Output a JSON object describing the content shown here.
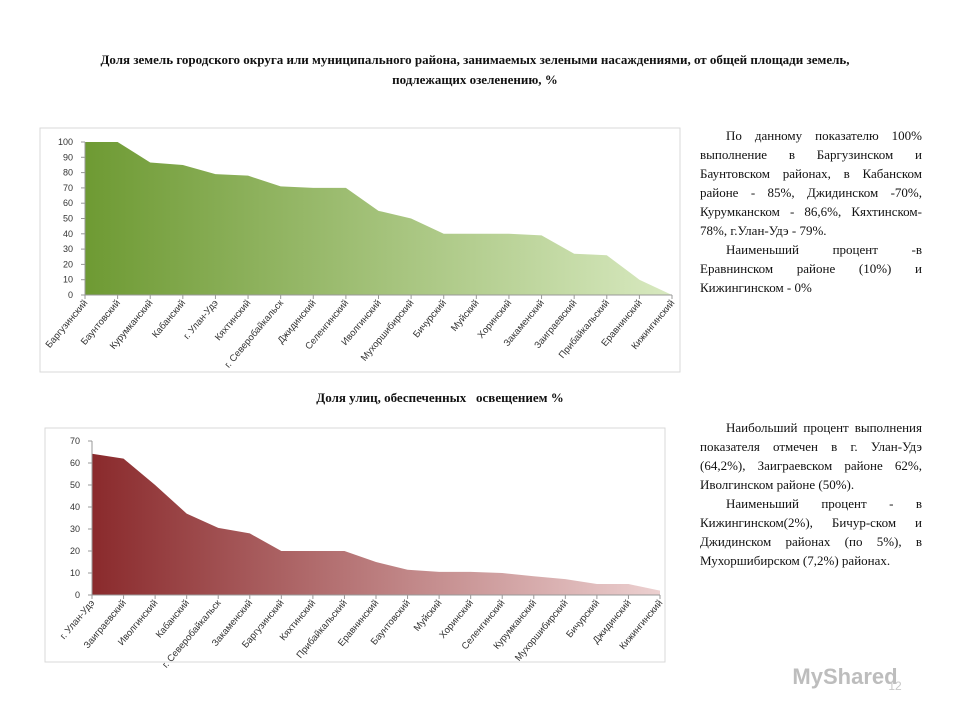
{
  "chart_data": [
    {
      "type": "area",
      "title": "Доля земель городского округа или муниципального района, занимаемых зелеными насаждениями, от общей площади земель, подлежащих озеленению, %",
      "categories": [
        "Баргузинский",
        "Баунтовский",
        "Курумканский",
        "Кабанский",
        "г. Улан-Удэ",
        "Кяхтинский",
        "г. Северобайкальск",
        "Джидинский",
        "Селенгинский",
        "Иволгинский",
        "Мухоршибирский",
        "Бичурский",
        "Муйский",
        "Хоринский",
        "Закаменский",
        "Заиграевский",
        "Прибайкальский",
        "Еравнинский",
        "Кижингинский"
      ],
      "values": [
        100,
        100,
        86.6,
        85,
        79,
        78,
        71,
        70,
        70,
        55,
        50,
        40,
        40,
        40,
        39,
        27,
        26,
        10,
        0
      ],
      "gradient": [
        "#6e9a33",
        "#d8e9c0"
      ],
      "ylim": [
        0,
        100
      ],
      "yticks": [
        0,
        10,
        20,
        30,
        40,
        50,
        60,
        70,
        80,
        90,
        100
      ]
    },
    {
      "type": "area",
      "title": "Доля улиц, обеспеченных   освещением %",
      "categories": [
        "г. Улан-Удэ",
        "Заиграевский",
        "Иволгинский",
        "Кабанский",
        "г. Северобайкальск",
        "Закаменский",
        "Баргузинский",
        "Кяхтинский",
        "Прибайкальский",
        "Еравнинский",
        "Баунтовский",
        "Муйский",
        "Хоринский",
        "Селенгинский",
        "Курумканский",
        "Мухоршибирский",
        "Бичурский",
        "Джидинский",
        "Кижингинский"
      ],
      "values": [
        64.2,
        62,
        50,
        37,
        30.5,
        28,
        20,
        20,
        20,
        15,
        11.5,
        10.5,
        10.5,
        10,
        8.5,
        7.2,
        5,
        5,
        2
      ],
      "gradient": [
        "#8a2a2c",
        "#ecd0d0"
      ],
      "ylim": [
        0,
        70
      ],
      "yticks": [
        0,
        10,
        20,
        30,
        40,
        50,
        60,
        70
      ]
    }
  ],
  "notes": [
    [
      "По данному показателю 100% выполнение в Баргузинском и Баунтовском районах, в Кабанском районе - 85%, Джидинском -70%, Курумканском - 86,6%, Кяхтинском- 78%, г.Улан-Удэ - 79%.",
      "Наименьший процент -в Еравнинском районе (10%) и Кижингинском - 0%"
    ],
    [
      "Наибольший процент выполнения показателя отмечен в г. Улан-Удэ (64,2%), Заиграевском районе 62%, Иволгинском районе (50%).",
      "Наименьший процент - в Кижингинском(2%), Бичур-ском и Джидинском районах (по 5%), в Мухоршибирском (7,2%) районах."
    ]
  ],
  "watermark": "MyShared",
  "page_number": "12"
}
